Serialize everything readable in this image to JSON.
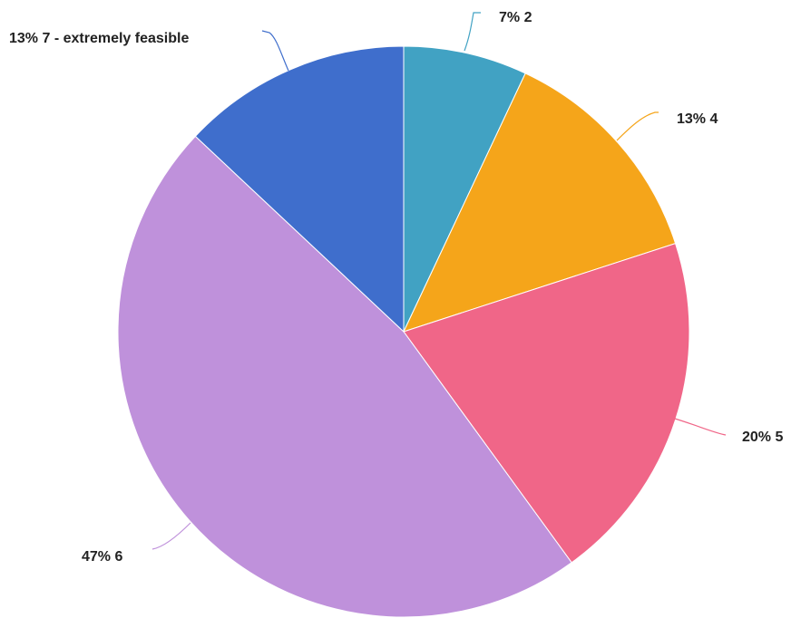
{
  "chart_data": {
    "type": "pie",
    "start_angle_deg": 0,
    "direction": "clockwise",
    "slices": [
      {
        "label": "2",
        "percent_label": "7%",
        "value": 7,
        "color": "#41a2c3"
      },
      {
        "label": "4",
        "percent_label": "13%",
        "value": 13,
        "color": "#f5a51a"
      },
      {
        "label": "5",
        "percent_label": "20%",
        "value": 20,
        "color": "#f06688"
      },
      {
        "label": "6",
        "percent_label": "47%",
        "value": 47,
        "color": "#bf91db"
      },
      {
        "label": "7 - extremely feasible",
        "percent_label": "13%",
        "value": 13,
        "color": "#3f6ecc"
      }
    ]
  }
}
